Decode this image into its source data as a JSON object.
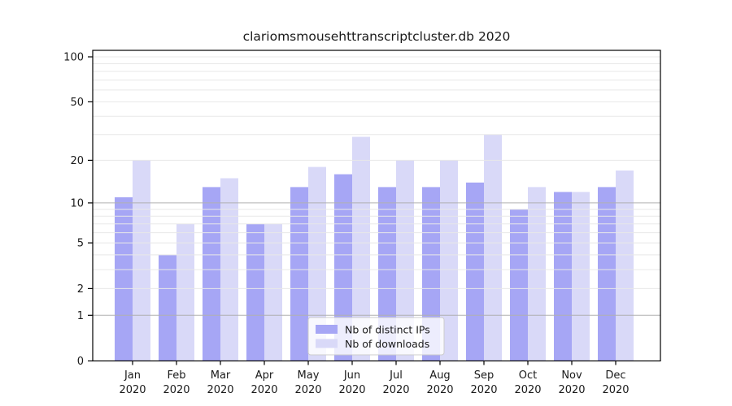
{
  "chart_data": {
    "type": "bar",
    "title": "clariomsmousehttranscriptcluster.db 2020",
    "categories": [
      "Jan",
      "Feb",
      "Mar",
      "Apr",
      "May",
      "Jun",
      "Jul",
      "Aug",
      "Sep",
      "Oct",
      "Nov",
      "Dec"
    ],
    "x_sublabel": "2020",
    "series": [
      {
        "name": "Nb of distinct IPs",
        "color": "#a6a6f5",
        "values": [
          11,
          4,
          13,
          7,
          13,
          16,
          13,
          13,
          14,
          9,
          12,
          13
        ]
      },
      {
        "name": "Nb of downloads",
        "color": "#d9d9f8",
        "values": [
          20,
          7,
          15,
          7,
          18,
          29,
          20,
          20,
          30,
          13,
          12,
          17
        ]
      }
    ],
    "y_axis": {
      "scale": "log1p",
      "tick_labels": [
        0,
        1,
        2,
        5,
        10,
        20,
        50,
        100
      ],
      "minor_gridlines": [
        2,
        3,
        4,
        5,
        6,
        7,
        8,
        9,
        20,
        30,
        40,
        50,
        60,
        70,
        80,
        90,
        100
      ],
      "emphasized_gridlines": [
        1,
        10
      ],
      "range": [
        0,
        110
      ]
    },
    "legend": {
      "position": "lower-center",
      "entries": [
        "Nb of distinct IPs",
        "Nb of downloads"
      ]
    },
    "grid": true,
    "colors": {
      "background": "#ffffff",
      "minor_grid": "#e8e8e8",
      "major_grid": "#b0b0b0",
      "axis": "#000000",
      "legend_border": "#cccccc",
      "legend_fill_alpha": 0.8
    }
  }
}
